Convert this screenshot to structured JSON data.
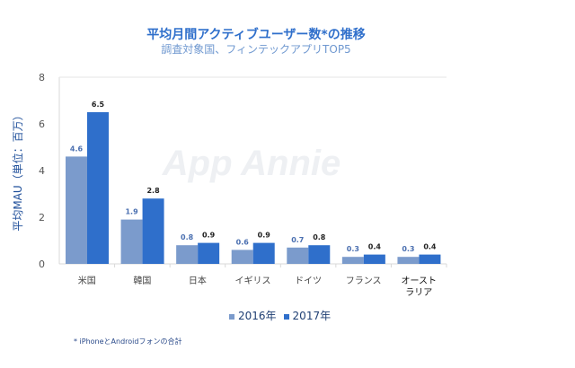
{
  "chart_data": {
    "type": "bar",
    "title": "平均月間アクティブユーザー数*の推移",
    "subtitle": "調査対象国、フィンテックアプリTOP5",
    "ylabel": "平均MAU（単位：百万）",
    "xlabel": "",
    "ylim": [
      0,
      8
    ],
    "yticks": [
      "0",
      "2",
      "4",
      "6",
      "8"
    ],
    "grid": false,
    "legend_position": "bottom",
    "categories": [
      "米国",
      "韓国",
      "日本",
      "イギリス",
      "ドイツ",
      "フランス",
      "オースト\nラリア"
    ],
    "series": [
      {
        "name": "2016年",
        "color": "#7b9bcc",
        "values": [
          4.6,
          1.9,
          0.8,
          0.6,
          0.7,
          0.3,
          0.3
        ],
        "labels": [
          "4.6",
          "1.9",
          "0.8",
          "0.6",
          "0.7",
          "0.3",
          "0.3"
        ]
      },
      {
        "name": "2017年",
        "color": "#2f6fcb",
        "values": [
          6.5,
          2.8,
          0.9,
          0.9,
          0.8,
          0.4,
          0.4
        ],
        "labels": [
          "6.5",
          "2.8",
          "0.9",
          "0.9",
          "0.8",
          "0.4",
          "0.4"
        ]
      }
    ],
    "footnote": "* iPhoneとAndroidフォンの合計",
    "watermark": "App Annie"
  }
}
